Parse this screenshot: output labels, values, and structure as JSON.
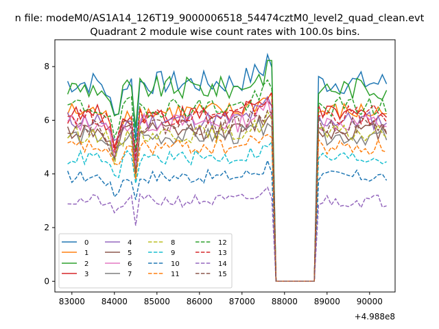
{
  "chart_data": {
    "type": "line",
    "suptitle": "n file: modeM0/AS1A14_126T19_9000006518_54474cztM0_level2_quad_clean.evt",
    "title": "Quadrant 2 module wise count rates with 100.0s bins.",
    "xlabel": "",
    "ylabel": "",
    "x_offset_label": "+4.988e8",
    "xlim": [
      82600,
      90600
    ],
    "ylim": [
      -0.4,
      9.0
    ],
    "x_ticks": [
      83000,
      84000,
      85000,
      86000,
      87000,
      88000,
      89000,
      90000
    ],
    "x_tick_labels": [
      "83000",
      "84000",
      "85000",
      "86000",
      "87000",
      "88000",
      "89000",
      "90000"
    ],
    "y_ticks": [
      0,
      2,
      4,
      6,
      8
    ],
    "y_tick_labels": [
      "0",
      "2",
      "4",
      "6",
      "8"
    ],
    "grid": false,
    "legend_position": "lower-left",
    "legend_columns": 4,
    "time_range": {
      "start": 82900,
      "end": 90400,
      "step": 100
    },
    "gap": {
      "start": 87800,
      "end": 88700,
      "value": 0
    },
    "series": [
      {
        "name": "0",
        "style": "solid",
        "color": "#1f77b4",
        "approx_level": 7.4
      },
      {
        "name": "1",
        "style": "solid",
        "color": "#ff7f0e",
        "approx_level": 6.3
      },
      {
        "name": "2",
        "style": "solid",
        "color": "#2ca02c",
        "approx_level": 7.2
      },
      {
        "name": "3",
        "style": "solid",
        "color": "#d62728",
        "approx_level": 6.2
      },
      {
        "name": "4",
        "style": "solid",
        "color": "#9467bd",
        "approx_level": 6.0
      },
      {
        "name": "5",
        "style": "solid",
        "color": "#8c564b",
        "approx_level": 5.6
      },
      {
        "name": "6",
        "style": "solid",
        "color": "#e377c2",
        "approx_level": 5.9
      },
      {
        "name": "7",
        "style": "solid",
        "color": "#7f7f7f",
        "approx_level": 5.4
      },
      {
        "name": "8",
        "style": "dashed",
        "color": "#bcbd22",
        "approx_level": 5.5
      },
      {
        "name": "9",
        "style": "dashed",
        "color": "#17becf",
        "approx_level": 4.6
      },
      {
        "name": "10",
        "style": "dashed",
        "color": "#1f77b4",
        "approx_level": 3.9
      },
      {
        "name": "11",
        "style": "dashed",
        "color": "#ff7f0e",
        "approx_level": 5.0
      },
      {
        "name": "12",
        "style": "dashed",
        "color": "#2ca02c",
        "approx_level": 6.5
      },
      {
        "name": "13",
        "style": "dashed",
        "color": "#d62728",
        "approx_level": 6.2
      },
      {
        "name": "14",
        "style": "dashed",
        "color": "#9467bd",
        "approx_level": 3.0
      },
      {
        "name": "15",
        "style": "dashed",
        "color": "#8c564b",
        "approx_level": 5.8
      }
    ]
  }
}
